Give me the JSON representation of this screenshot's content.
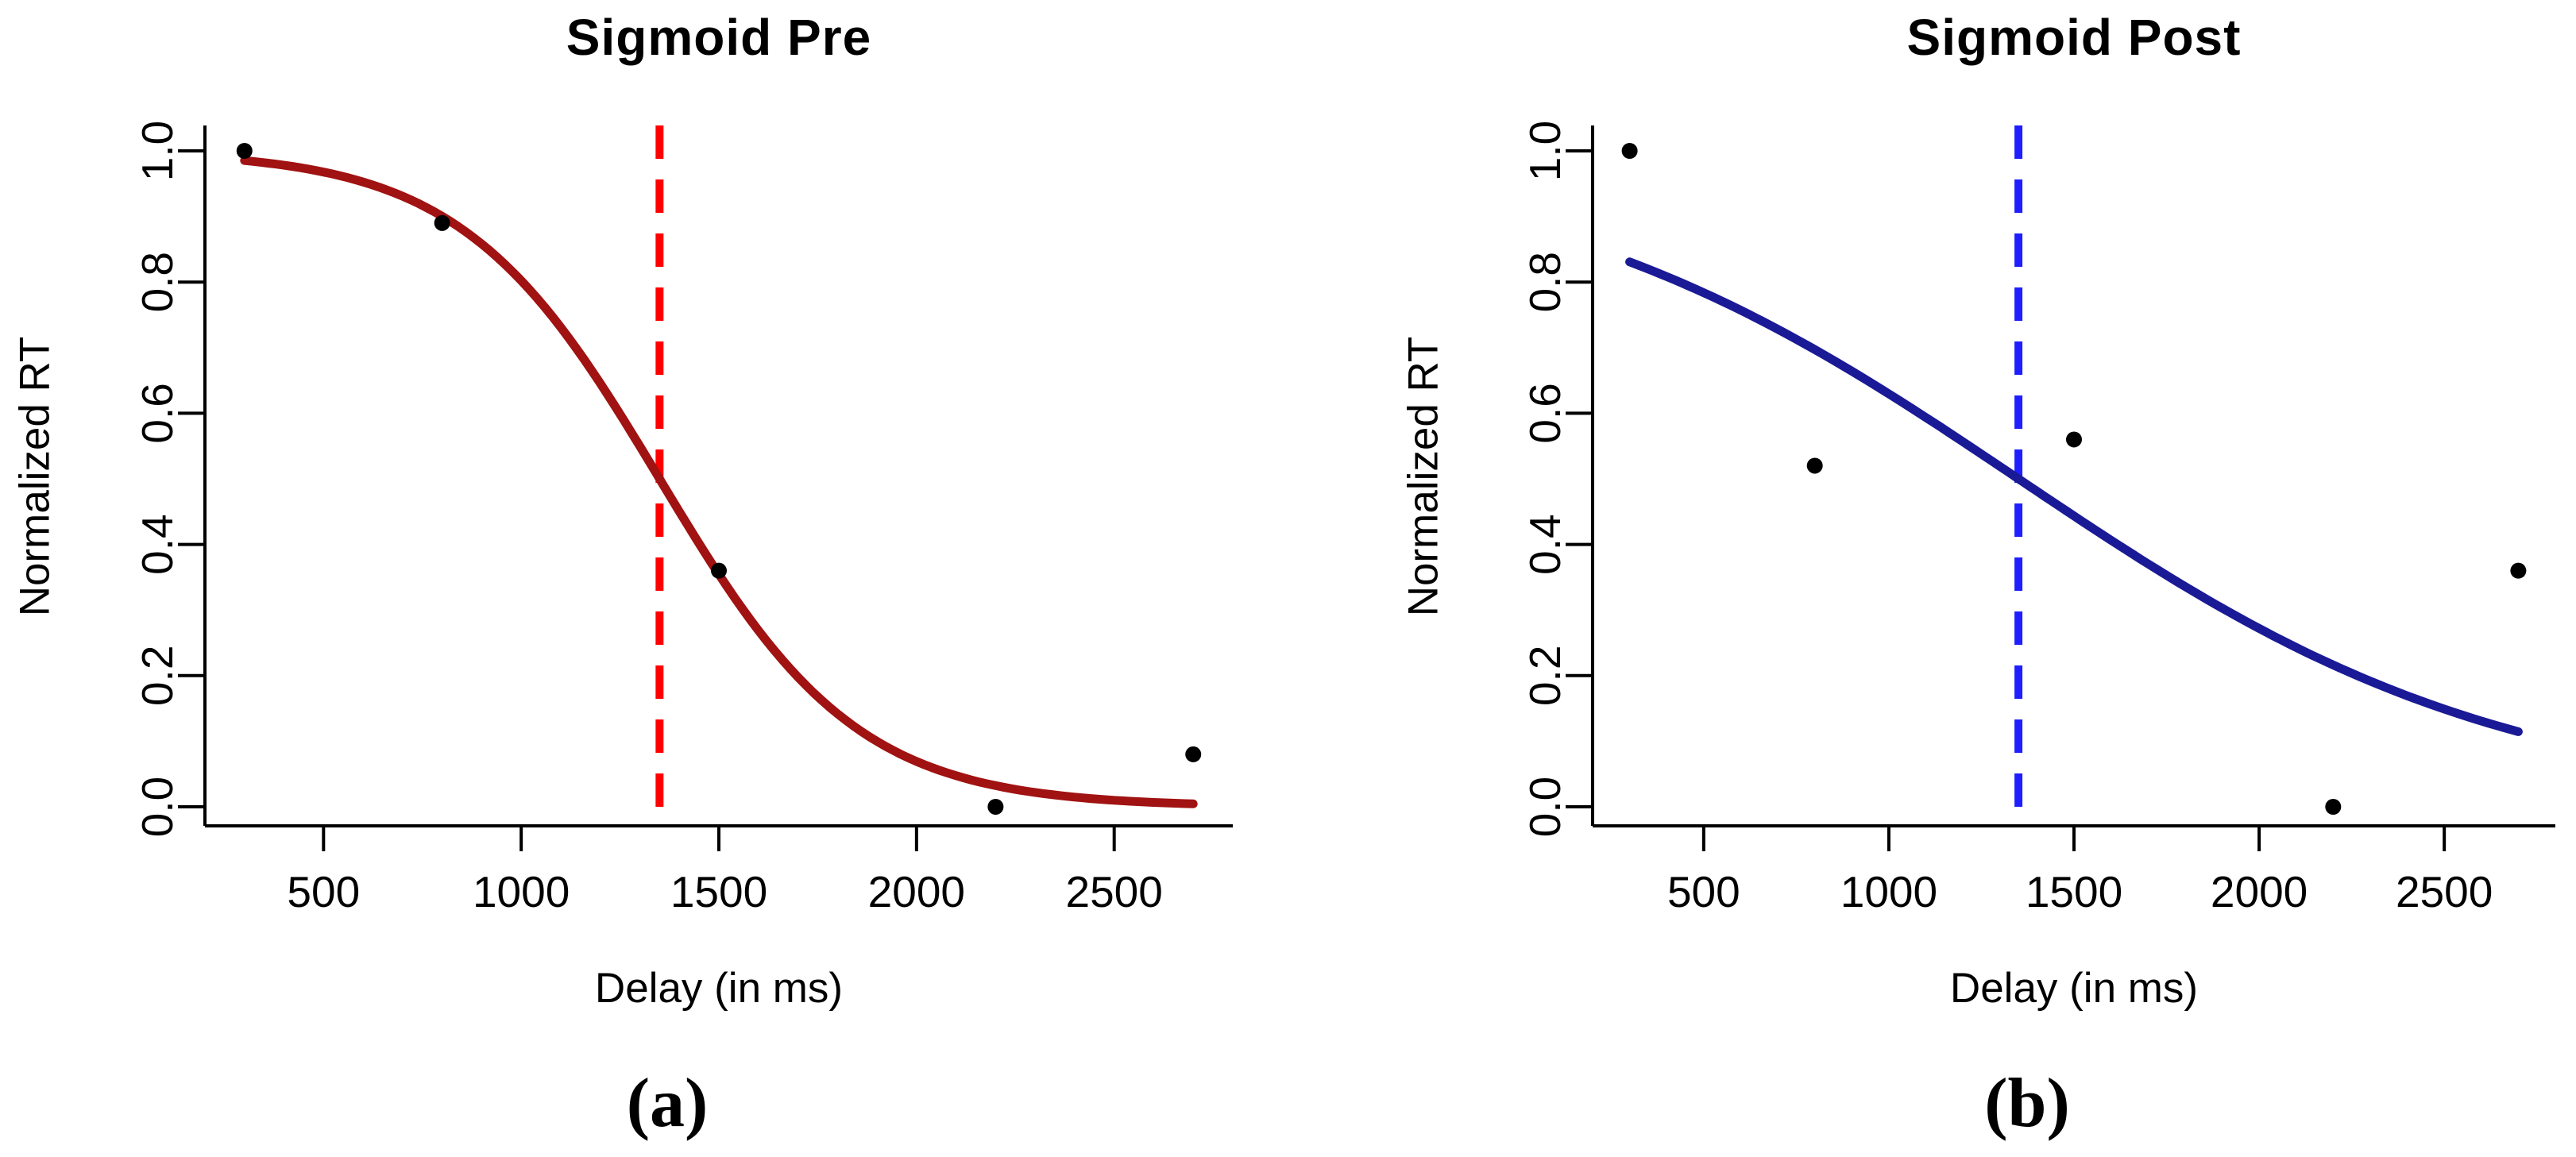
{
  "figure": {
    "background": "#FFFFFF"
  },
  "chart_data": [
    {
      "type": "scatter",
      "panel_label": "a",
      "title": "Sigmoid Pre",
      "xlabel": "Delay (in ms)",
      "ylabel": "Normalized RT",
      "caption": "(a)",
      "xlim": [
        200,
        2800
      ],
      "ylim": [
        -0.03,
        1.04
      ],
      "grid": false,
      "legend": "none",
      "x_ticks": [
        {
          "value": 500,
          "label": "500"
        },
        {
          "value": 1000,
          "label": "1000"
        },
        {
          "value": 1500,
          "label": "1500"
        },
        {
          "value": 2000,
          "label": "2000"
        },
        {
          "value": 2500,
          "label": "2500"
        }
      ],
      "y_ticks": [
        {
          "value": 0.0,
          "label": "0.0"
        },
        {
          "value": 0.2,
          "label": "0.2"
        },
        {
          "value": 0.4,
          "label": "0.4"
        },
        {
          "value": 0.6,
          "label": "0.6"
        },
        {
          "value": 0.8,
          "label": "0.8"
        },
        {
          "value": 1.0,
          "label": "1.0"
        }
      ],
      "points": [
        {
          "x": 300,
          "y": 1.0
        },
        {
          "x": 800,
          "y": 0.89
        },
        {
          "x": 1500,
          "y": 0.36
        },
        {
          "x": 2200,
          "y": 0.0
        },
        {
          "x": 2700,
          "y": 0.08
        }
      ],
      "point_color": "#000000",
      "axis_color": "#000000",
      "fit_curve": {
        "model": "decreasing-logistic",
        "midpoint_ms": 1350,
        "scale_ms": 250,
        "x_start": 300,
        "x_end": 2700,
        "y_start": 0.99,
        "y_mid": 0.5,
        "y_end": 0.005,
        "style": "solid",
        "color": "#A11212"
      },
      "vline": {
        "x": 1350,
        "style": "dashed",
        "color": "#FF0000"
      }
    },
    {
      "type": "scatter",
      "panel_label": "b",
      "title": "Sigmoid Post",
      "xlabel": "Delay (in ms)",
      "ylabel": "Normalized RT",
      "caption": "(b)",
      "xlim": [
        200,
        2800
      ],
      "ylim": [
        -0.03,
        1.04
      ],
      "grid": false,
      "legend": "none",
      "x_ticks": [
        {
          "value": 500,
          "label": "500"
        },
        {
          "value": 1000,
          "label": "1000"
        },
        {
          "value": 1500,
          "label": "1500"
        },
        {
          "value": 2000,
          "label": "2000"
        },
        {
          "value": 2500,
          "label": "2500"
        }
      ],
      "y_ticks": [
        {
          "value": 0.0,
          "label": "0.0"
        },
        {
          "value": 0.2,
          "label": "0.2"
        },
        {
          "value": 0.4,
          "label": "0.4"
        },
        {
          "value": 0.6,
          "label": "0.6"
        },
        {
          "value": 0.8,
          "label": "0.8"
        },
        {
          "value": 1.0,
          "label": "1.0"
        }
      ],
      "points": [
        {
          "x": 300,
          "y": 1.0
        },
        {
          "x": 800,
          "y": 0.52
        },
        {
          "x": 1500,
          "y": 0.56
        },
        {
          "x": 2200,
          "y": 0.0
        },
        {
          "x": 2700,
          "y": 0.36
        }
      ],
      "point_color": "#000000",
      "axis_color": "#000000",
      "fit_curve": {
        "model": "decreasing-logistic",
        "midpoint_ms": 1350,
        "scale_ms": 660,
        "x_start": 300,
        "x_end": 2700,
        "y_start": 0.83,
        "y_mid": 0.5,
        "y_end": 0.12,
        "style": "solid",
        "color": "#1A1A96"
      },
      "vline": {
        "x": 1350,
        "style": "dashed",
        "color": "#1E1EFF"
      }
    }
  ]
}
